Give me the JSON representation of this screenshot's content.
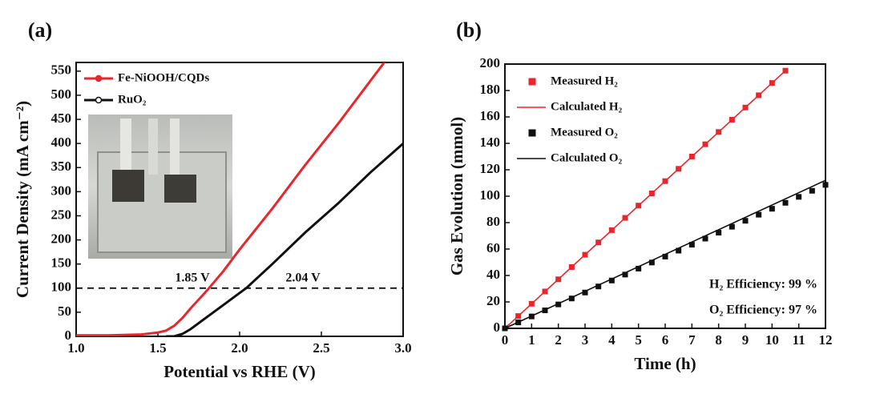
{
  "chart_data": [
    {
      "type": "line",
      "panel_label": "(a)",
      "x_label": "Potential vs RHE (V)",
      "y_label": "Current Density (mA cm⁻²)",
      "xlim": [
        1.0,
        3.0
      ],
      "ylim": [
        0,
        568
      ],
      "xticks": [
        {
          "value": 1.0,
          "label": "1.0"
        },
        1.5,
        {
          "value": 2.0,
          "label": "2.0"
        },
        2.5,
        {
          "value": 3.0,
          "label": "3.0"
        }
      ],
      "yticks": [
        0,
        50,
        100,
        150,
        200,
        250,
        300,
        350,
        400,
        450,
        500,
        550
      ],
      "reference_line": 100,
      "annotations": [
        "1.85 V",
        "2.04 V"
      ],
      "series": [
        {
          "name": "Fe-NiOOH/CQDs",
          "color": "#e8262b",
          "style": "line",
          "x": [
            1.0,
            1.2,
            1.4,
            1.5,
            1.55,
            1.6,
            1.65,
            1.7,
            1.8,
            1.9,
            2.0,
            2.2,
            2.4,
            2.6,
            2.8,
            2.9
          ],
          "values": [
            2,
            2,
            4,
            8,
            12,
            22,
            38,
            58,
            95,
            135,
            180,
            265,
            355,
            440,
            530,
            575
          ]
        },
        {
          "name": "RuO₂",
          "color": "#111111",
          "style": "line",
          "x": [
            1.55,
            1.6,
            1.65,
            1.7,
            1.8,
            1.9,
            2.0,
            2.04,
            2.2,
            2.4,
            2.6,
            2.8,
            3.0
          ],
          "values": [
            0,
            0,
            5,
            15,
            40,
            65,
            90,
            100,
            150,
            215,
            275,
            340,
            400
          ]
        }
      ]
    },
    {
      "type": "line",
      "panel_label": "(b)",
      "x_label": "Time (h)",
      "y_label": "Gas Evolution (mmol)",
      "xlim": [
        0,
        12
      ],
      "ylim": [
        0,
        200
      ],
      "xticks": [
        0,
        1,
        2,
        3,
        4,
        5,
        6,
        7,
        8,
        9,
        10,
        11,
        12
      ],
      "yticks": [
        0,
        20,
        40,
        60,
        80,
        100,
        120,
        140,
        160,
        180,
        200
      ],
      "annotations": [
        "H₂ Efficiency: 99 %",
        "O₂ Efficiency: 97 %"
      ],
      "series": [
        {
          "name": "Measured H₂",
          "color": "#e8262b",
          "style": "marker",
          "x": [
            0,
            0.5,
            1,
            1.5,
            2,
            2.5,
            3,
            3.5,
            4,
            4.5,
            5,
            5.5,
            6,
            6.5,
            7,
            7.5,
            8,
            8.5,
            9,
            9.5,
            10,
            10.5
          ],
          "values": [
            0,
            9.3,
            18.6,
            27.9,
            37.1,
            46.4,
            55.7,
            65,
            74.3,
            83.6,
            92.9,
            102.1,
            111.4,
            120.7,
            130,
            139.3,
            148.6,
            157.9,
            167.1,
            176.4,
            185.7,
            195
          ]
        },
        {
          "name": "Calculated H₂",
          "color": "#e8262b",
          "style": "line",
          "x": [
            0,
            10.5
          ],
          "values": [
            0,
            195
          ]
        },
        {
          "name": "Measured O₂",
          "color": "#111111",
          "style": "marker",
          "x": [
            0,
            0.5,
            1,
            1.5,
            2,
            2.5,
            3,
            3.5,
            4,
            4.5,
            5,
            5.5,
            6,
            6.5,
            7,
            7.5,
            8,
            8.5,
            9,
            9.5,
            10,
            10.5,
            11,
            11.5,
            12
          ],
          "values": [
            0,
            4.5,
            9,
            13.6,
            18.1,
            22.6,
            27.1,
            31.7,
            36.2,
            40.7,
            45.2,
            49.8,
            54.3,
            58.8,
            63.3,
            67.9,
            72.4,
            76.9,
            81.4,
            86,
            90.5,
            95,
            99.5,
            104.1,
            108.6
          ]
        },
        {
          "name": "Calculated O₂",
          "color": "#111111",
          "style": "line",
          "x": [
            0,
            12
          ],
          "values": [
            0,
            112
          ]
        }
      ]
    }
  ]
}
